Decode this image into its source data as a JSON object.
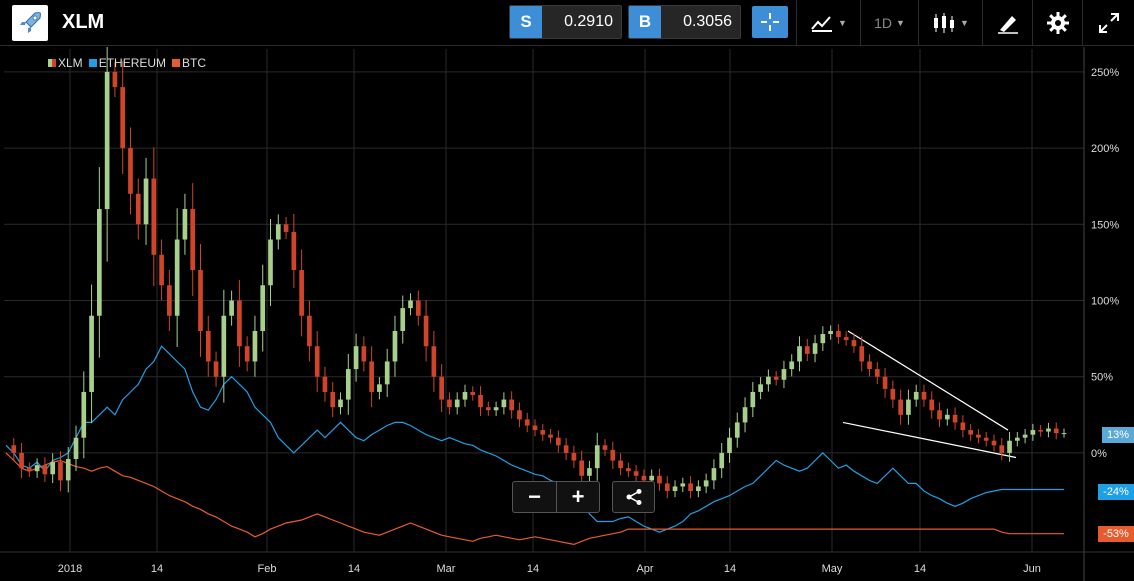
{
  "app": {
    "title": "XLM"
  },
  "quotes": {
    "sell": {
      "tag": "S",
      "price": "0.2910"
    },
    "buy": {
      "tag": "B",
      "price": "0.3056"
    }
  },
  "toolbar": {
    "interval_label": "1D"
  },
  "colors": {
    "background": "#000000",
    "accent": "#3d8ed6",
    "candle_up": "#a8d08d",
    "candle_down": "#d0452a",
    "ethereum": "#1ea0e6",
    "btc": "#e65c2e",
    "grid": "#2a2a2a",
    "trend_lines": "#ffffff"
  },
  "zoom_controls": {
    "minus": "−",
    "plus": "+"
  },
  "badges": {
    "xlm": "13%",
    "ethereum": "-24%",
    "btc": "-53%"
  },
  "chart_data": {
    "type": "line",
    "series": [
      {
        "name": "XLM",
        "style": "candlestick",
        "values": [
          5,
          0,
          -10,
          -12,
          -8,
          -14,
          -6,
          -18,
          -4,
          10,
          40,
          90,
          160,
          250,
          240,
          200,
          170,
          150,
          180,
          130,
          110,
          90,
          140,
          160,
          120,
          80,
          60,
          50,
          90,
          100,
          70,
          60,
          80,
          110,
          140,
          150,
          145,
          120,
          90,
          70,
          50,
          40,
          30,
          35,
          55,
          70,
          60,
          40,
          45,
          60,
          80,
          95,
          100,
          90,
          70,
          50,
          35,
          30,
          35,
          40,
          38,
          30,
          28,
          30,
          35,
          28,
          22,
          18,
          15,
          12,
          10,
          5,
          0,
          -5,
          -15,
          -10,
          5,
          2,
          -5,
          -10,
          -12,
          -15,
          -18,
          -15,
          -20,
          -25,
          -22,
          -20,
          -25,
          -22,
          -18,
          -10,
          0,
          10,
          20,
          30,
          40,
          45,
          50,
          48,
          55,
          60,
          70,
          65,
          72,
          78,
          80,
          76,
          74,
          70,
          60,
          55,
          50,
          42,
          35,
          25,
          35,
          40,
          35,
          28,
          22,
          25,
          20,
          15,
          12,
          10,
          8,
          5,
          0,
          8,
          10,
          12,
          15,
          14,
          16,
          13,
          13
        ]
      },
      {
        "name": "ETHEREUM",
        "style": "line",
        "values": [
          5,
          0,
          -8,
          -10,
          -6,
          -12,
          -5,
          -3,
          0,
          10,
          20,
          20,
          25,
          30,
          25,
          35,
          40,
          45,
          55,
          60,
          70,
          65,
          60,
          55,
          40,
          30,
          28,
          35,
          45,
          50,
          45,
          40,
          30,
          25,
          20,
          10,
          5,
          0,
          5,
          10,
          15,
          10,
          15,
          20,
          15,
          10,
          8,
          12,
          15,
          18,
          20,
          20,
          18,
          15,
          12,
          10,
          8,
          10,
          8,
          6,
          5,
          2,
          0,
          -2,
          -5,
          -8,
          -10,
          -12,
          -14,
          -15,
          -18,
          -20,
          -25,
          -28,
          -30,
          -40,
          -45,
          -45,
          -45,
          -43,
          -42,
          -45,
          -48,
          -50,
          -52,
          -50,
          -48,
          -45,
          -40,
          -38,
          -35,
          -32,
          -30,
          -28,
          -25,
          -22,
          -20,
          -15,
          -10,
          -5,
          -8,
          -10,
          -12,
          -10,
          -5,
          0,
          -5,
          -10,
          -8,
          -12,
          -15,
          -18,
          -20,
          -15,
          -10,
          -15,
          -20,
          -20,
          -25,
          -28,
          -30,
          -33,
          -35,
          -33,
          -30,
          -28,
          -26,
          -25,
          -24,
          -24,
          -24,
          -24,
          -24,
          -24,
          -24,
          -24,
          -24
        ]
      },
      {
        "name": "BTC",
        "style": "line",
        "values": [
          0,
          -5,
          -10,
          -12,
          -10,
          -8,
          -6,
          -5,
          -7,
          -9,
          -10,
          -12,
          -10,
          -9,
          -12,
          -15,
          -16,
          -18,
          -20,
          -22,
          -25,
          -28,
          -30,
          -32,
          -35,
          -37,
          -40,
          -42,
          -45,
          -48,
          -50,
          -52,
          -55,
          -53,
          -50,
          -48,
          -46,
          -45,
          -44,
          -42,
          -40,
          -42,
          -44,
          -46,
          -48,
          -50,
          -52,
          -53,
          -54,
          -52,
          -50,
          -48,
          -46,
          -48,
          -50,
          -52,
          -54,
          -55,
          -56,
          -57,
          -58,
          -56,
          -55,
          -54,
          -55,
          -56,
          -57,
          -56,
          -55,
          -56,
          -57,
          -58,
          -59,
          -60,
          -58,
          -56,
          -55,
          -54,
          -53,
          -52,
          -50,
          -50,
          -50,
          -50,
          -50,
          -50,
          -50,
          -50,
          -50,
          -50,
          -50,
          -50,
          -50,
          -50,
          -50,
          -50,
          -50,
          -50,
          -50,
          -50,
          -50,
          -50,
          -50,
          -50,
          -50,
          -50,
          -50,
          -50,
          -50,
          -50,
          -50,
          -50,
          -50,
          -50,
          -50,
          -50,
          -50,
          -50,
          -50,
          -50,
          -50,
          -50,
          -50,
          -50,
          -50,
          -50,
          -50,
          -50,
          -52,
          -53,
          -53,
          -53,
          -53,
          -53,
          -53,
          -53,
          -53
        ]
      }
    ],
    "x_tick_labels": [
      "2018",
      "14",
      "Feb",
      "14",
      "Mar",
      "14",
      "Apr",
      "14",
      "May",
      "14",
      "Jun"
    ],
    "y_tick_labels": [
      "250%",
      "200%",
      "150%",
      "100%",
      "50%",
      "0%"
    ],
    "ylim": [
      -65,
      265
    ],
    "grid": true,
    "legend_placement": "top-left",
    "annotations": [
      "descending wedge trendlines (May)"
    ]
  }
}
